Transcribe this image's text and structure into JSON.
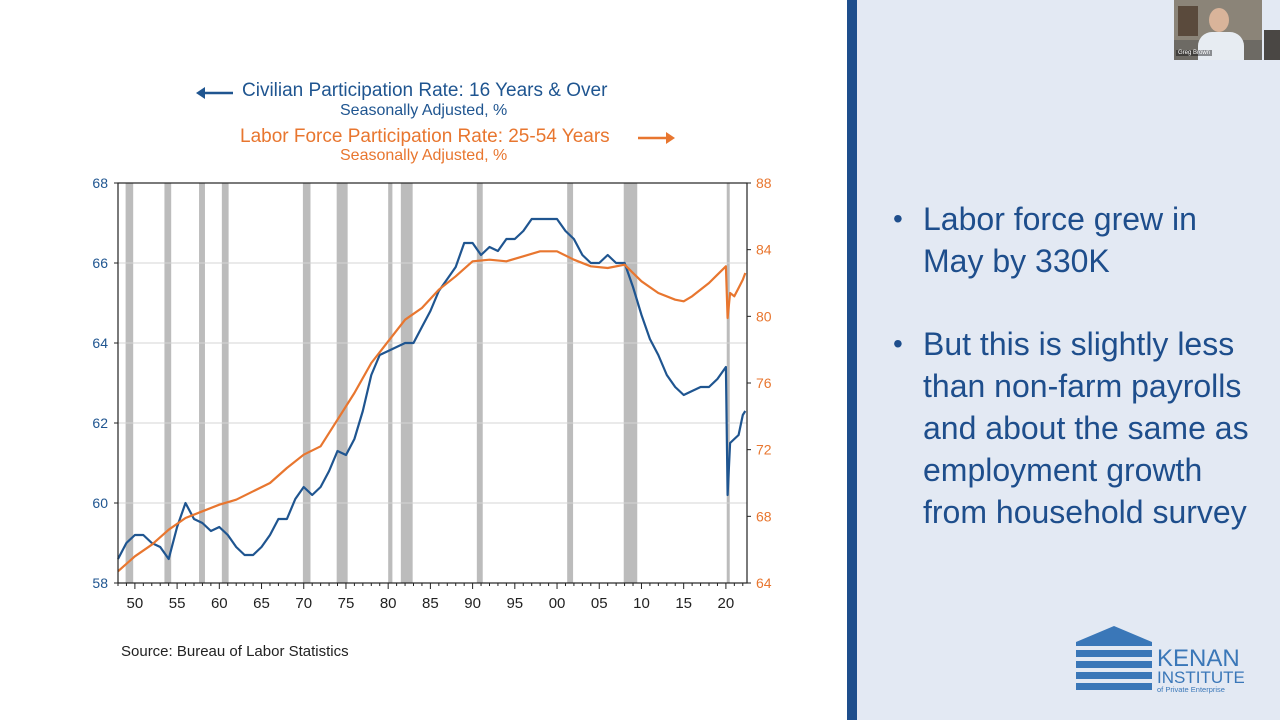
{
  "chart_data": {
    "type": "line",
    "series": [
      {
        "name": "Civilian Participation Rate: 16 Years & Over",
        "subtitle": "Seasonally Adjusted, %",
        "axis": "left",
        "color": "#1f5590",
        "points": [
          [
            1948.0,
            58.6
          ],
          [
            1949.0,
            59.0
          ],
          [
            1950.0,
            59.2
          ],
          [
            1951.0,
            59.2
          ],
          [
            1952.0,
            59.0
          ],
          [
            1953.0,
            58.9
          ],
          [
            1954.0,
            58.6
          ],
          [
            1955.0,
            59.4
          ],
          [
            1956.0,
            60.0
          ],
          [
            1957.0,
            59.6
          ],
          [
            1958.0,
            59.5
          ],
          [
            1959.0,
            59.3
          ],
          [
            1960.0,
            59.4
          ],
          [
            1961.0,
            59.2
          ],
          [
            1962.0,
            58.9
          ],
          [
            1963.0,
            58.7
          ],
          [
            1964.0,
            58.7
          ],
          [
            1965.0,
            58.9
          ],
          [
            1966.0,
            59.2
          ],
          [
            1967.0,
            59.6
          ],
          [
            1968.0,
            59.6
          ],
          [
            1969.0,
            60.1
          ],
          [
            1970.0,
            60.4
          ],
          [
            1971.0,
            60.2
          ],
          [
            1972.0,
            60.4
          ],
          [
            1973.0,
            60.8
          ],
          [
            1974.0,
            61.3
          ],
          [
            1975.0,
            61.2
          ],
          [
            1976.0,
            61.6
          ],
          [
            1977.0,
            62.3
          ],
          [
            1978.0,
            63.2
          ],
          [
            1979.0,
            63.7
          ],
          [
            1980.0,
            63.8
          ],
          [
            1981.0,
            63.9
          ],
          [
            1982.0,
            64.0
          ],
          [
            1983.0,
            64.0
          ],
          [
            1984.0,
            64.4
          ],
          [
            1985.0,
            64.8
          ],
          [
            1986.0,
            65.3
          ],
          [
            1987.0,
            65.6
          ],
          [
            1988.0,
            65.9
          ],
          [
            1989.0,
            66.5
          ],
          [
            1990.0,
            66.5
          ],
          [
            1991.0,
            66.2
          ],
          [
            1992.0,
            66.4
          ],
          [
            1993.0,
            66.3
          ],
          [
            1994.0,
            66.6
          ],
          [
            1995.0,
            66.6
          ],
          [
            1996.0,
            66.8
          ],
          [
            1997.0,
            67.1
          ],
          [
            1998.0,
            67.1
          ],
          [
            1999.0,
            67.1
          ],
          [
            2000.0,
            67.1
          ],
          [
            2001.0,
            66.8
          ],
          [
            2002.0,
            66.6
          ],
          [
            2003.0,
            66.2
          ],
          [
            2004.0,
            66.0
          ],
          [
            2005.0,
            66.0
          ],
          [
            2006.0,
            66.2
          ],
          [
            2007.0,
            66.0
          ],
          [
            2008.0,
            66.0
          ],
          [
            2009.0,
            65.4
          ],
          [
            2010.0,
            64.7
          ],
          [
            2011.0,
            64.1
          ],
          [
            2012.0,
            63.7
          ],
          [
            2013.0,
            63.2
          ],
          [
            2014.0,
            62.9
          ],
          [
            2015.0,
            62.7
          ],
          [
            2016.0,
            62.8
          ],
          [
            2017.0,
            62.9
          ],
          [
            2018.0,
            62.9
          ],
          [
            2019.0,
            63.1
          ],
          [
            2020.0,
            63.4
          ],
          [
            2020.2,
            60.2
          ],
          [
            2020.5,
            61.5
          ],
          [
            2021.0,
            61.6
          ],
          [
            2021.5,
            61.7
          ],
          [
            2022.0,
            62.2
          ],
          [
            2022.3,
            62.3
          ]
        ]
      },
      {
        "name": "Labor Force Participation Rate: 25-54 Years",
        "subtitle": "Seasonally Adjusted, %",
        "axis": "right",
        "color": "#e8762f",
        "points": [
          [
            1948.0,
            64.7
          ],
          [
            1950.0,
            65.6
          ],
          [
            1952.0,
            66.3
          ],
          [
            1954.0,
            67.2
          ],
          [
            1956.0,
            67.9
          ],
          [
            1958.0,
            68.3
          ],
          [
            1960.0,
            68.7
          ],
          [
            1962.0,
            69.0
          ],
          [
            1964.0,
            69.5
          ],
          [
            1966.0,
            70.0
          ],
          [
            1968.0,
            70.9
          ],
          [
            1970.0,
            71.7
          ],
          [
            1972.0,
            72.2
          ],
          [
            1974.0,
            73.8
          ],
          [
            1976.0,
            75.4
          ],
          [
            1978.0,
            77.2
          ],
          [
            1980.0,
            78.5
          ],
          [
            1982.0,
            79.8
          ],
          [
            1984.0,
            80.5
          ],
          [
            1986.0,
            81.6
          ],
          [
            1988.0,
            82.4
          ],
          [
            1990.0,
            83.3
          ],
          [
            1992.0,
            83.4
          ],
          [
            1994.0,
            83.3
          ],
          [
            1996.0,
            83.6
          ],
          [
            1998.0,
            83.9
          ],
          [
            2000.0,
            83.9
          ],
          [
            2002.0,
            83.4
          ],
          [
            2004.0,
            83.0
          ],
          [
            2006.0,
            82.9
          ],
          [
            2008.0,
            83.1
          ],
          [
            2010.0,
            82.1
          ],
          [
            2012.0,
            81.4
          ],
          [
            2014.0,
            81.0
          ],
          [
            2015.0,
            80.9
          ],
          [
            2016.0,
            81.2
          ],
          [
            2018.0,
            82.0
          ],
          [
            2019.0,
            82.5
          ],
          [
            2020.0,
            83.0
          ],
          [
            2020.2,
            79.9
          ],
          [
            2020.5,
            81.4
          ],
          [
            2021.0,
            81.2
          ],
          [
            2021.5,
            81.7
          ],
          [
            2022.0,
            82.2
          ],
          [
            2022.3,
            82.6
          ]
        ]
      }
    ],
    "x_range": [
      1948,
      2022.5
    ],
    "x_ticks": [
      {
        "value": 1950,
        "label": "50"
      },
      {
        "value": 1955,
        "label": "55"
      },
      {
        "value": 1960,
        "label": "60"
      },
      {
        "value": 1965,
        "label": "65"
      },
      {
        "value": 1970,
        "label": "70"
      },
      {
        "value": 1975,
        "label": "75"
      },
      {
        "value": 1980,
        "label": "80"
      },
      {
        "value": 1985,
        "label": "85"
      },
      {
        "value": 1990,
        "label": "90"
      },
      {
        "value": 1995,
        "label": "95"
      },
      {
        "value": 2000,
        "label": "00"
      },
      {
        "value": 2005,
        "label": "05"
      },
      {
        "value": 2010,
        "label": "10"
      },
      {
        "value": 2015,
        "label": "15"
      },
      {
        "value": 2020,
        "label": "20"
      }
    ],
    "y_left": {
      "range": [
        58,
        68
      ],
      "ticks": [
        58,
        60,
        62,
        64,
        66,
        68
      ],
      "color": "#1f5590"
    },
    "y_right": {
      "range": [
        64,
        88
      ],
      "ticks": [
        64,
        68,
        72,
        76,
        80,
        84,
        88
      ],
      "color": "#e8762f"
    },
    "recessions": [
      [
        1948.9,
        1949.8
      ],
      [
        1953.5,
        1954.3
      ],
      [
        1957.6,
        1958.3
      ],
      [
        1960.3,
        1961.1
      ],
      [
        1969.9,
        1970.8
      ],
      [
        1973.9,
        1975.2
      ],
      [
        1980.0,
        1980.5
      ],
      [
        1981.5,
        1982.9
      ],
      [
        1990.5,
        1991.2
      ],
      [
        2001.2,
        2001.9
      ],
      [
        2007.9,
        2009.5
      ],
      [
        2020.1,
        2020.3
      ]
    ],
    "recession_color": "#bcbcbc",
    "grid": true,
    "source": "Source:  Bureau of Labor Statistics"
  },
  "legend": {
    "blue_title": "Civilian Participation Rate: 16 Years & Over",
    "blue_subtitle": "Seasonally Adjusted, %",
    "orange_title": "Labor Force Participation Rate: 25-54 Years",
    "orange_subtitle": "Seasonally Adjusted, %"
  },
  "sidebar": {
    "bullets": [
      "Labor force grew in May by 330K",
      "But this is slightly less than non-farm payrolls and about the same as employment growth from household survey"
    ],
    "bullet_glyph": "•"
  },
  "webcam": {
    "name": "Greg Brown"
  },
  "logo": {
    "line1": "KENAN",
    "line2": "INSTITUTE",
    "line3": "of Private Enterprise",
    "color": "#3a77b8"
  }
}
